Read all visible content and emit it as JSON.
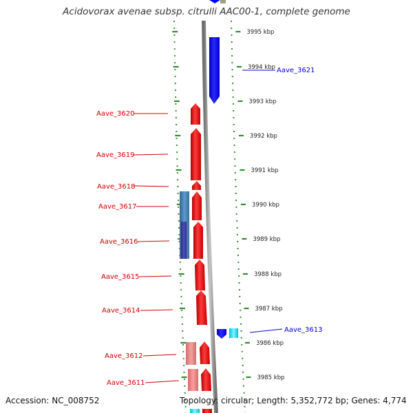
{
  "title": "Acidovorax avenae subsp. citrulli AAC00-1, complete genome",
  "footer": {
    "accession": "Accession: NC_008752",
    "topology": "Topology: circular; Length: 5,352,772 bp; Genes: 4,774"
  },
  "scale_labels": [
    "3995 kbp",
    "3994 kbp",
    "3993 kbp",
    "3992 kbp",
    "3991 kbp",
    "3990 kbp",
    "3989 kbp",
    "3988 kbp",
    "3987 kbp",
    "3986 kbp",
    "3985 kbp"
  ],
  "genes": [
    {
      "id": "Aave_3621",
      "strand": "reverse",
      "color": "#0000ff"
    },
    {
      "id": "Aave_3620",
      "strand": "forward",
      "color": "#ff0000"
    },
    {
      "id": "Aave_3619",
      "strand": "forward",
      "color": "#ff0000"
    },
    {
      "id": "Aave_3618",
      "strand": "forward",
      "color": "#ff0000"
    },
    {
      "id": "Aave_3617",
      "strand": "forward",
      "color": "#ff0000"
    },
    {
      "id": "Aave_3616",
      "strand": "forward",
      "color": "#ff0000"
    },
    {
      "id": "Aave_3615",
      "strand": "forward",
      "color": "#ff0000"
    },
    {
      "id": "Aave_3614",
      "strand": "forward",
      "color": "#ff0000"
    },
    {
      "id": "Aave_3613",
      "strand": "reverse",
      "color": "#0000ff"
    },
    {
      "id": "Aave_3612",
      "strand": "forward",
      "color": "#ff0000"
    },
    {
      "id": "Aave_3611",
      "strand": "forward",
      "color": "#ff0000"
    }
  ],
  "colors": {
    "forward_gene": "#ff0000",
    "reverse_gene": "#0000ff",
    "feature_steelblue": "#4682b4",
    "feature_indigo": "#3a3a9e",
    "feature_cyan": "#00e5ee",
    "feature_pink": "#f08080",
    "backbone": "#8c8c8c",
    "tick": "#2e8b2e"
  }
}
